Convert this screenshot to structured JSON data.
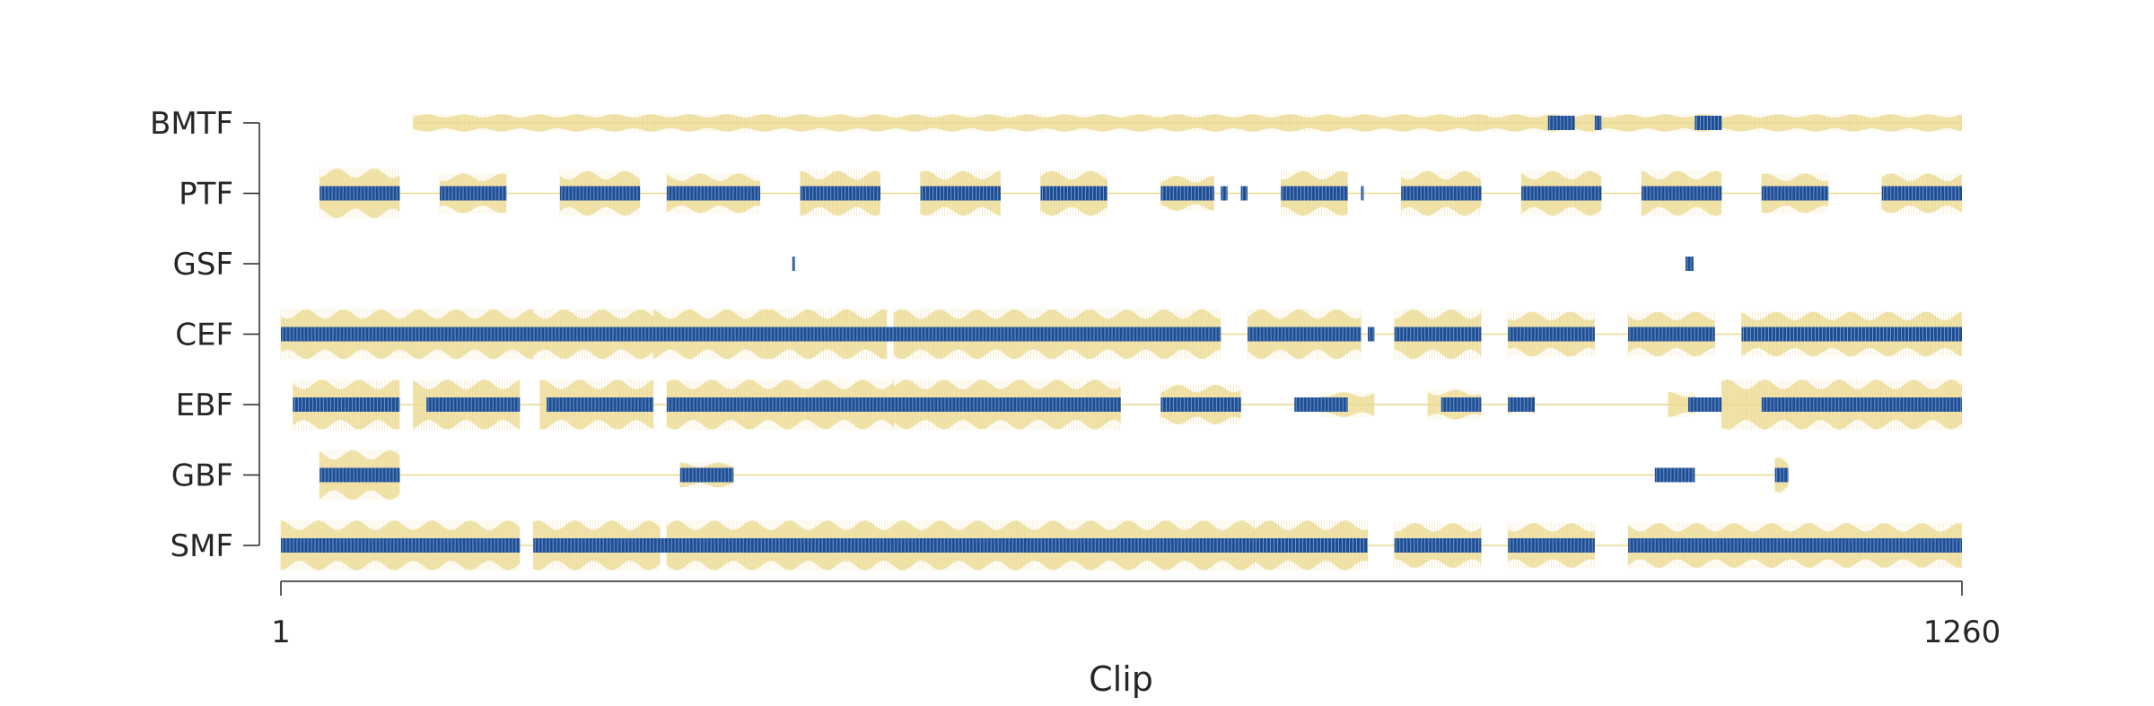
{
  "chart_data": {
    "type": "heatmap",
    "xlabel": "Clip",
    "ylabel": "",
    "title": "",
    "xlim": [
      1,
      1260
    ],
    "x_ticks": [
      "1",
      "1260"
    ],
    "categories": [
      "BMTF",
      "PTF",
      "GSF",
      "CEF",
      "EBF",
      "GBF",
      "SMF"
    ],
    "colors": {
      "magnitude": "#f0e2a8",
      "active": "#1f4e94",
      "axis": "#262626"
    },
    "series": [
      {
        "name": "BMTF",
        "envelope": [
          [
            100,
            1260,
            0.35
          ]
        ],
        "active": [
          [
            950,
            970
          ],
          [
            985,
            990
          ],
          [
            1060,
            1080
          ]
        ]
      },
      {
        "name": "PTF",
        "envelope": [
          [
            30,
            90,
            1.0
          ],
          [
            120,
            170,
            0.8
          ],
          [
            210,
            270,
            0.9
          ],
          [
            290,
            360,
            0.8
          ],
          [
            390,
            450,
            0.9
          ],
          [
            480,
            540,
            0.9
          ],
          [
            570,
            620,
            0.9
          ],
          [
            660,
            700,
            0.7
          ],
          [
            750,
            800,
            0.9
          ],
          [
            840,
            900,
            0.9
          ],
          [
            930,
            990,
            0.9
          ],
          [
            1020,
            1080,
            0.9
          ],
          [
            1110,
            1160,
            0.8
          ],
          [
            1200,
            1260,
            0.8
          ]
        ],
        "active": [
          [
            30,
            90
          ],
          [
            120,
            170
          ],
          [
            210,
            270
          ],
          [
            290,
            360
          ],
          [
            390,
            450
          ],
          [
            480,
            540
          ],
          [
            570,
            620
          ],
          [
            660,
            700
          ],
          [
            705,
            710
          ],
          [
            720,
            725
          ],
          [
            750,
            800
          ],
          [
            810,
            812
          ],
          [
            840,
            900
          ],
          [
            930,
            990
          ],
          [
            1020,
            1080
          ],
          [
            1110,
            1160
          ],
          [
            1200,
            1260
          ]
        ]
      },
      {
        "name": "GSF",
        "envelope": [],
        "active": [
          [
            384,
            386
          ],
          [
            1053,
            1059
          ]
        ]
      },
      {
        "name": "CEF",
        "envelope": [
          [
            1,
            190,
            1.0
          ],
          [
            190,
            280,
            1.0
          ],
          [
            280,
            365,
            1.0
          ],
          [
            365,
            455,
            1.0
          ],
          [
            460,
            705,
            1.0
          ],
          [
            725,
            810,
            1.0
          ],
          [
            835,
            900,
            1.0
          ],
          [
            920,
            985,
            0.9
          ],
          [
            1010,
            1075,
            0.9
          ],
          [
            1095,
            1260,
            0.9
          ]
        ],
        "active": [
          [
            1,
            705
          ],
          [
            725,
            810
          ],
          [
            815,
            820
          ],
          [
            835,
            900
          ],
          [
            920,
            985
          ],
          [
            1010,
            1075
          ],
          [
            1095,
            1260
          ]
        ]
      },
      {
        "name": "EBF",
        "envelope": [
          [
            10,
            90,
            1.0
          ],
          [
            100,
            180,
            1.0
          ],
          [
            195,
            280,
            1.0
          ],
          [
            290,
            460,
            1.0
          ],
          [
            460,
            630,
            1.0
          ],
          [
            660,
            720,
            0.8
          ],
          [
            780,
            820,
            0.5
          ],
          [
            860,
            900,
            0.6
          ],
          [
            920,
            940,
            0.4
          ],
          [
            1040,
            1060,
            0.5
          ],
          [
            1080,
            1260,
            1.0
          ]
        ],
        "active": [
          [
            10,
            90
          ],
          [
            110,
            180
          ],
          [
            200,
            280
          ],
          [
            290,
            630
          ],
          [
            660,
            720
          ],
          [
            760,
            800
          ],
          [
            870,
            900
          ],
          [
            920,
            940
          ],
          [
            1055,
            1080
          ],
          [
            1110,
            1260
          ]
        ]
      },
      {
        "name": "GBF",
        "envelope": [
          [
            30,
            90,
            1.0
          ],
          [
            300,
            340,
            0.5
          ],
          [
            1120,
            1130,
            0.7
          ]
        ],
        "active": [
          [
            30,
            90
          ],
          [
            300,
            340
          ],
          [
            1030,
            1060
          ],
          [
            1120,
            1130
          ]
        ]
      },
      {
        "name": "SMF",
        "envelope": [
          [
            1,
            180,
            1.0
          ],
          [
            190,
            285,
            1.0
          ],
          [
            290,
            730,
            1.0
          ],
          [
            730,
            815,
            1.0
          ],
          [
            835,
            900,
            0.9
          ],
          [
            920,
            985,
            0.9
          ],
          [
            1010,
            1260,
            0.9
          ]
        ],
        "active": [
          [
            1,
            180
          ],
          [
            190,
            730
          ],
          [
            730,
            815
          ],
          [
            835,
            900
          ],
          [
            920,
            985
          ],
          [
            1010,
            1260
          ]
        ]
      }
    ],
    "grid": false,
    "legend": "none"
  }
}
